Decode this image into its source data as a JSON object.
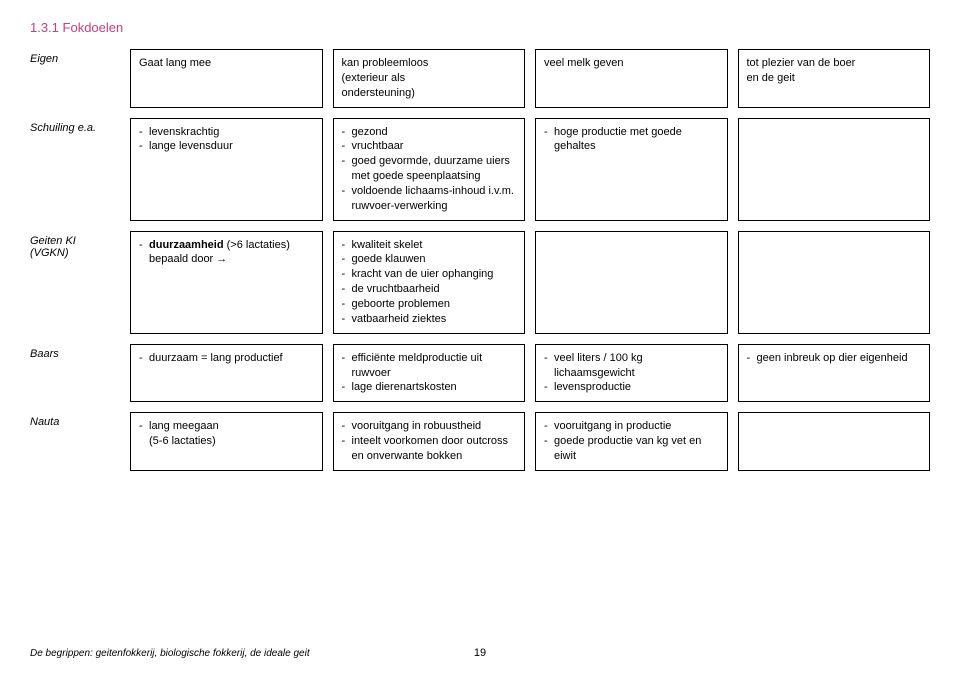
{
  "heading": "1.3.1 Fokdoelen",
  "headers": {
    "col1": "Eigen",
    "col2": "Gaat lang mee",
    "col3_line1": "kan probleemloos",
    "col3_line2": "(exterieur als",
    "col3_line3": "ondersteuning)",
    "col4": "veel melk geven",
    "col5_line1": "tot plezier van de boer",
    "col5_line2": "en de geit"
  },
  "row_schuiling": {
    "label": "Schuiling e.a.",
    "c2_i1": "levenskrachtig",
    "c2_i2": "lange levensduur",
    "c3_i1": "gezond",
    "c3_i2": "vruchtbaar",
    "c3_i3": "goed gevormde, duurzame uiers met goede speenplaatsing",
    "c3_i4": "voldoende lichaams-inhoud i.v.m. ruwvoer-verwerking",
    "c4_i1": "hoge productie met goede gehaltes"
  },
  "row_geitenki": {
    "label_l1": "Geiten KI",
    "label_l2": "(VGKN)",
    "c2_i1_pre": "duurzaamheid",
    "c2_i1_post": " (>6 lactaties) bepaald door →",
    "c3_i1": "kwaliteit skelet",
    "c3_i2": "goede klauwen",
    "c3_i3": "kracht van de uier ophanging",
    "c3_i4": "de vruchtbaarheid",
    "c3_i5": "geboorte problemen",
    "c3_i6": "vatbaarheid ziektes"
  },
  "row_baars": {
    "label": "Baars",
    "c2_i1": "duurzaam = lang productief",
    "c3_i1": "efficiënte meldproductie uit ruwvoer",
    "c3_i2": "lage dierenartskosten",
    "c4_i1": "veel liters / 100 kg lichaamsgewicht",
    "c4_i2": "levensproductie",
    "c5_i1": "geen inbreuk op dier eigenheid"
  },
  "row_nauta": {
    "label": "Nauta",
    "c2_i1": "lang meegaan",
    "c2_i2": "(5-6 lactaties)",
    "c3_i1": "vooruitgang in robuustheid",
    "c3_i2": "inteelt voorkomen door outcross en onverwante bokken",
    "c4_i1": "vooruitgang in productie",
    "c4_i2": "goede productie van kg vet en eiwit"
  },
  "footer": "De begrippen: geitenfokkerij, biologische fokkerij, de ideale geit",
  "page": "19"
}
